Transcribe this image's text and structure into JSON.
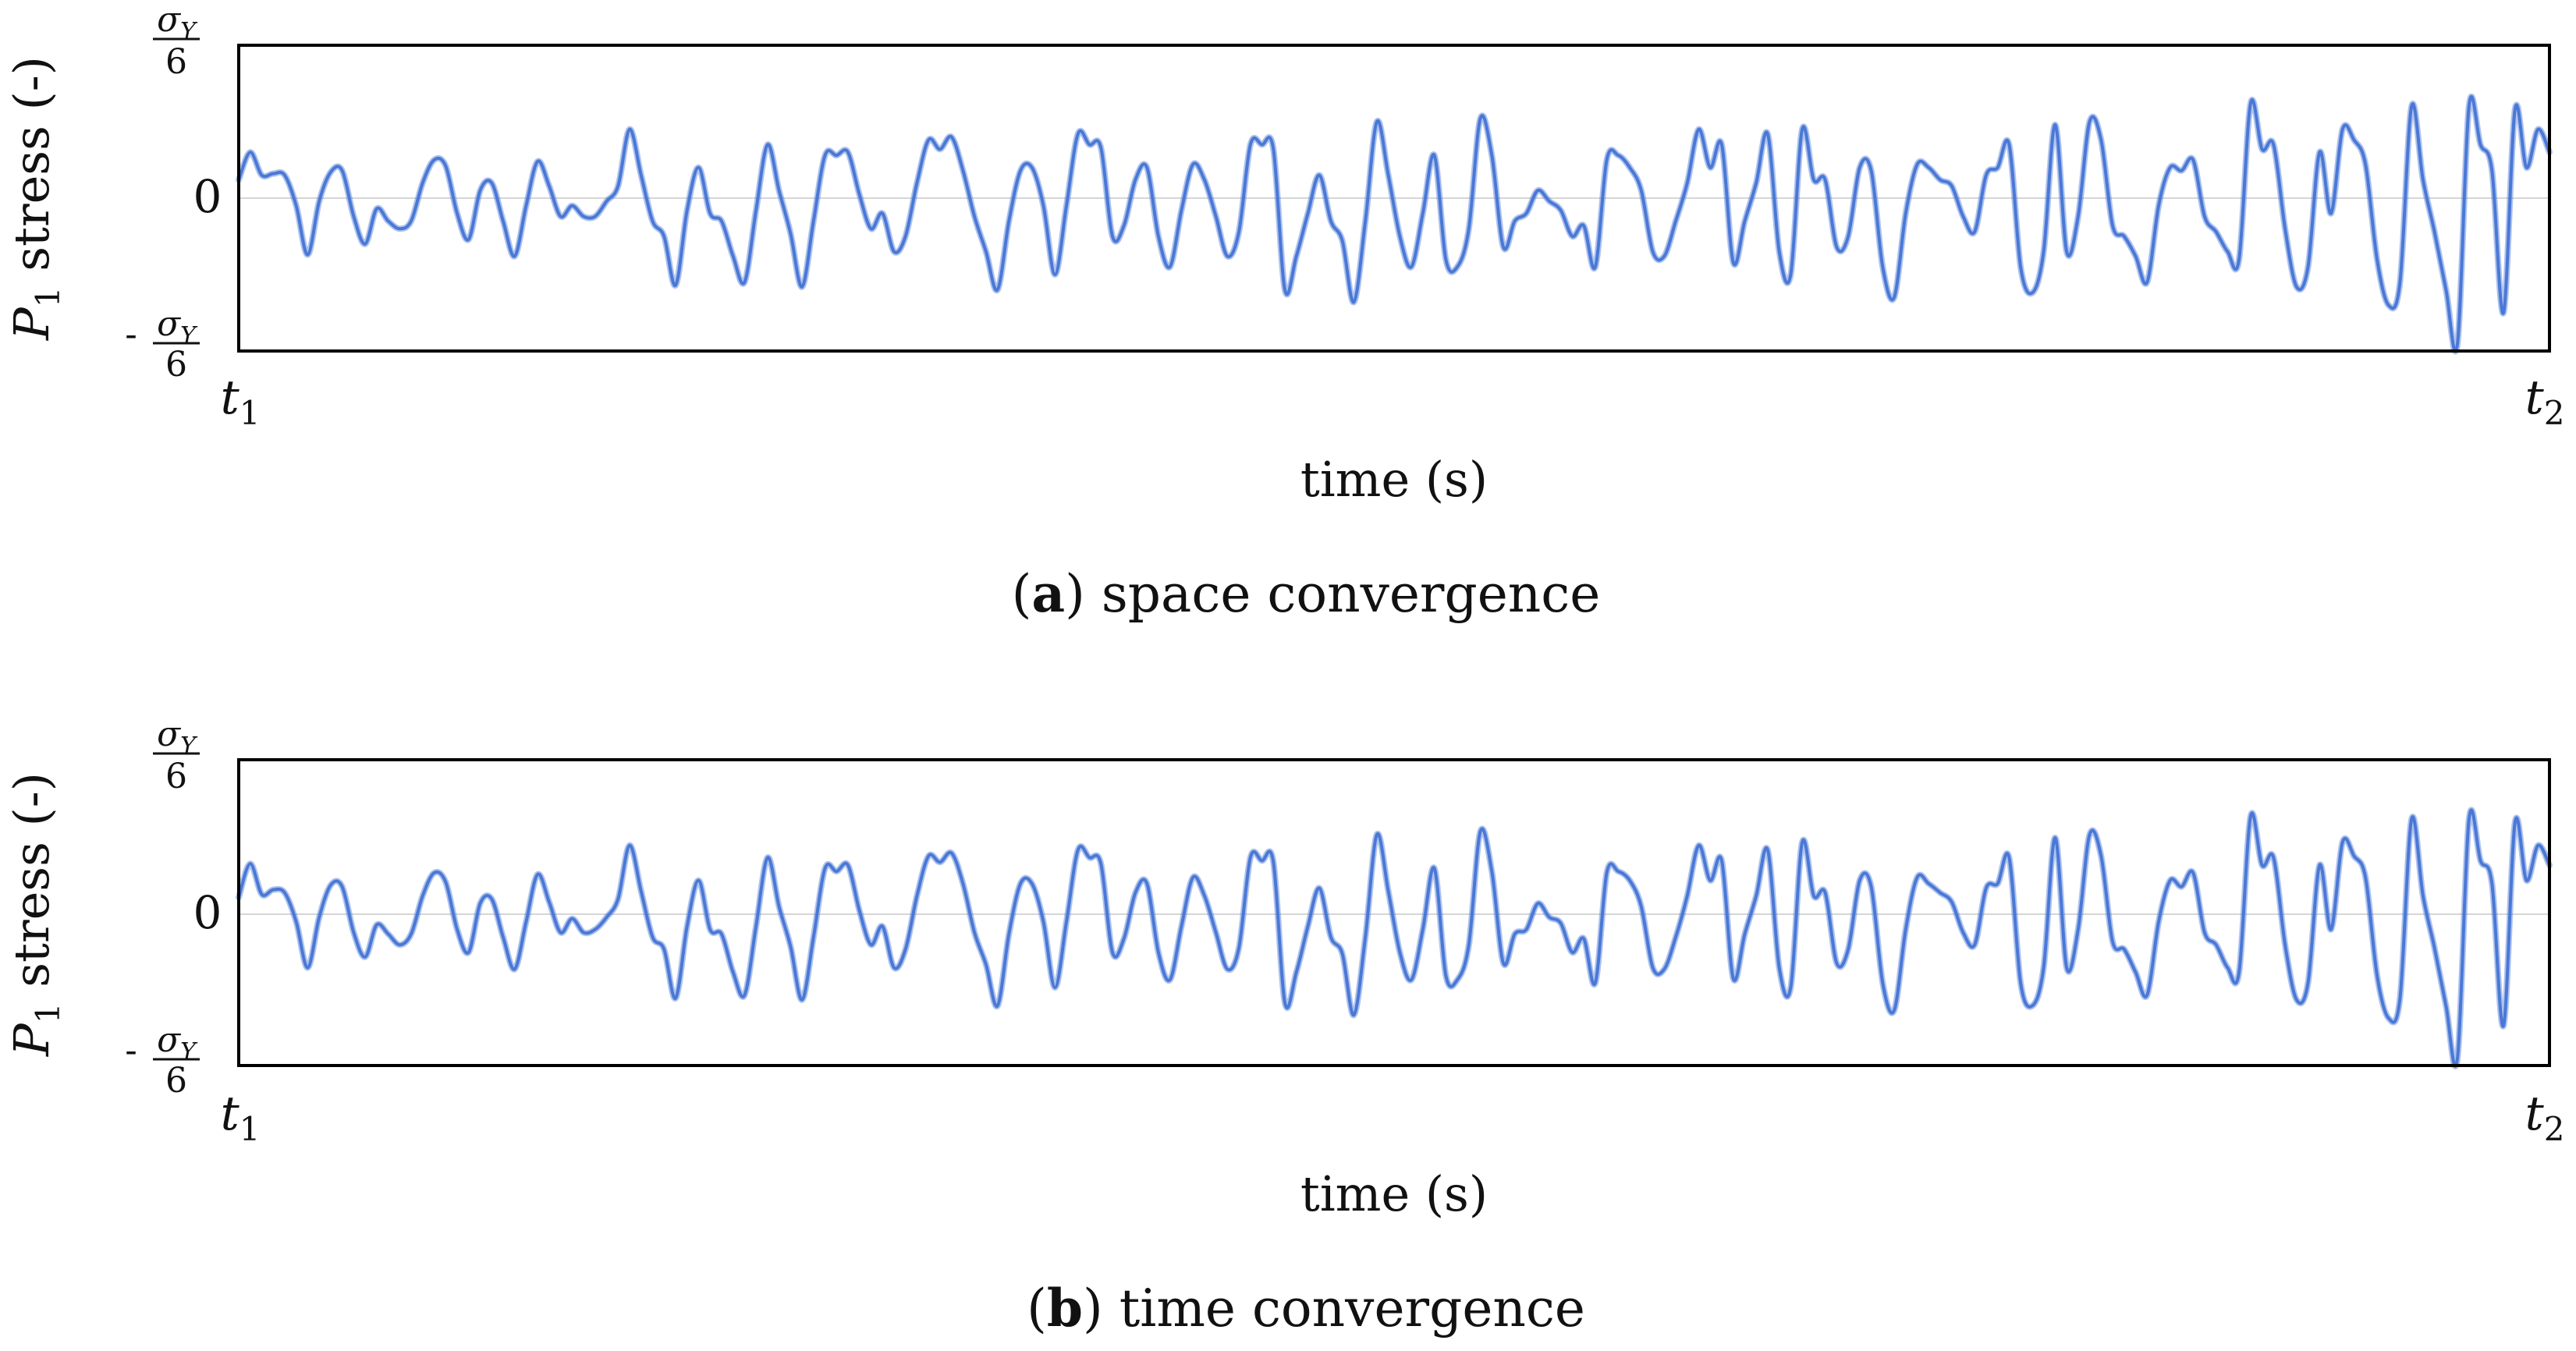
{
  "chart_data": [
    {
      "type": "line",
      "caption_bold": "a",
      "caption_text": "space convergence",
      "xlabel": "time (s)",
      "ylabel_var": "P",
      "ylabel_sub": "1",
      "ylabel_rest": " stress (-)",
      "x_ticks": [
        {
          "base": "t",
          "sub": "1"
        },
        {
          "base": "t",
          "sub": "2"
        }
      ],
      "y_ticks": {
        "top_num": "σ",
        "top_num_sub": "Y",
        "top_den": "6",
        "zero": "0",
        "bottom_sign": "-",
        "bottom_num": "σ",
        "bottom_num_sub": "Y",
        "bottom_den": "6"
      },
      "ylim": [
        -1,
        1
      ],
      "grid": false,
      "series": [
        {
          "color": "#4a78d6",
          "y": [
            0.12,
            0.3,
            0.15,
            0.16,
            0.15,
            -0.05,
            -0.37,
            -0.02,
            0.17,
            0.18,
            -0.12,
            -0.3,
            -0.07,
            -0.15,
            -0.2,
            -0.15,
            0.1,
            0.25,
            0.21,
            -0.1,
            -0.27,
            0.05,
            0.1,
            -0.15,
            -0.38,
            -0.05,
            0.24,
            0.08,
            -0.12,
            -0.05,
            -0.12,
            -0.12,
            -0.02,
            0.08,
            0.45,
            0.15,
            -0.15,
            -0.25,
            -0.57,
            -0.08,
            0.2,
            -0.1,
            -0.15,
            -0.38,
            -0.55,
            -0.08,
            0.35,
            0.05,
            -0.23,
            -0.58,
            -0.15,
            0.28,
            0.28,
            0.3,
            0.02,
            -0.2,
            -0.1,
            -0.35,
            -0.25,
            0.1,
            0.38,
            0.32,
            0.4,
            0.18,
            -0.12,
            -0.35,
            -0.6,
            -0.15,
            0.18,
            0.2,
            -0.05,
            -0.5,
            -0.05,
            0.42,
            0.35,
            0.33,
            -0.25,
            -0.18,
            0.12,
            0.2,
            -0.25,
            -0.45,
            -0.08,
            0.22,
            0.12,
            -0.12,
            -0.38,
            -0.22,
            0.35,
            0.35,
            0.32,
            -0.6,
            -0.38,
            -0.1,
            0.15,
            -0.15,
            -0.28,
            -0.68,
            -0.15,
            0.5,
            0.15,
            -0.25,
            -0.45,
            -0.1,
            0.28,
            -0.4,
            -0.45,
            -0.2,
            0.52,
            0.28,
            -0.32,
            -0.15,
            -0.1,
            0.05,
            -0.02,
            -0.08,
            -0.25,
            -0.18,
            -0.45,
            0.25,
            0.28,
            0.2,
            0.05,
            -0.35,
            -0.38,
            -0.15,
            0.1,
            0.45,
            0.2,
            0.35,
            -0.42,
            -0.15,
            0.1,
            0.42,
            -0.35,
            -0.5,
            0.45,
            0.12,
            0.12,
            -0.32,
            -0.25,
            0.2,
            0.18,
            -0.45,
            -0.65,
            -0.1,
            0.22,
            0.2,
            0.12,
            0.08,
            -0.12,
            -0.22,
            0.15,
            0.2,
            0.35,
            -0.45,
            -0.62,
            -0.35,
            0.48,
            -0.35,
            -0.12,
            0.5,
            0.38,
            -0.18,
            -0.25,
            -0.38,
            -0.55,
            -0.05,
            0.2,
            0.18,
            0.25,
            -0.12,
            -0.22,
            -0.35,
            -0.4,
            0.62,
            0.32,
            0.35,
            -0.2,
            -0.58,
            -0.45,
            0.3,
            -0.1,
            0.45,
            0.38,
            0.22,
            -0.4,
            -0.7,
            -0.55,
            0.6,
            0.12,
            -0.22,
            -0.6,
            -0.95,
            0.6,
            0.35,
            0.18,
            -0.75,
            0.58,
            0.2,
            0.45,
            0.3
          ]
        }
      ]
    },
    {
      "type": "line",
      "caption_bold": "b",
      "caption_text": "time convergence",
      "xlabel": "time (s)",
      "ylabel_var": "P",
      "ylabel_sub": "1",
      "ylabel_rest": " stress (-)",
      "x_ticks": [
        {
          "base": "t",
          "sub": "1"
        },
        {
          "base": "t",
          "sub": "2"
        }
      ],
      "y_ticks": {
        "top_num": "σ",
        "top_num_sub": "Y",
        "top_den": "6",
        "zero": "0",
        "bottom_sign": "-",
        "bottom_num": "σ",
        "bottom_num_sub": "Y",
        "bottom_den": "6"
      },
      "ylim": [
        -1,
        1
      ],
      "grid": false,
      "series": [
        {
          "color": "#4a78d6",
          "y": [
            0.1,
            0.32,
            0.12,
            0.15,
            0.13,
            -0.06,
            -0.36,
            -0.03,
            0.18,
            0.17,
            -0.13,
            -0.29,
            -0.08,
            -0.14,
            -0.21,
            -0.14,
            0.11,
            0.26,
            0.2,
            -0.11,
            -0.26,
            0.06,
            0.09,
            -0.16,
            -0.37,
            -0.06,
            0.25,
            0.07,
            -0.13,
            -0.04,
            -0.13,
            -0.11,
            -0.03,
            0.09,
            0.44,
            0.14,
            -0.16,
            -0.24,
            -0.56,
            -0.09,
            0.21,
            -0.11,
            -0.14,
            -0.39,
            -0.54,
            -0.09,
            0.36,
            0.04,
            -0.22,
            -0.57,
            -0.16,
            0.29,
            0.27,
            0.31,
            0.01,
            -0.21,
            -0.09,
            -0.36,
            -0.24,
            0.11,
            0.37,
            0.33,
            0.39,
            0.19,
            -0.13,
            -0.34,
            -0.61,
            -0.14,
            0.19,
            0.19,
            -0.06,
            -0.49,
            -0.06,
            0.41,
            0.36,
            0.32,
            -0.26,
            -0.17,
            0.13,
            0.19,
            -0.26,
            -0.44,
            -0.09,
            0.23,
            0.11,
            -0.13,
            -0.37,
            -0.23,
            0.36,
            0.34,
            0.33,
            -0.59,
            -0.39,
            -0.09,
            0.16,
            -0.16,
            -0.27,
            -0.67,
            -0.16,
            0.51,
            0.14,
            -0.26,
            -0.44,
            -0.11,
            0.29,
            -0.41,
            -0.44,
            -0.21,
            0.53,
            0.27,
            -0.33,
            -0.14,
            -0.11,
            0.06,
            -0.03,
            -0.07,
            -0.26,
            -0.17,
            -0.46,
            0.26,
            0.27,
            0.21,
            0.04,
            -0.36,
            -0.37,
            -0.16,
            0.11,
            0.44,
            0.21,
            0.34,
            -0.43,
            -0.14,
            0.11,
            0.41,
            -0.36,
            -0.49,
            0.46,
            0.11,
            0.13,
            -0.33,
            -0.24,
            0.21,
            0.17,
            -0.46,
            -0.64,
            -0.11,
            0.23,
            0.19,
            0.13,
            0.07,
            -0.13,
            -0.21,
            0.16,
            0.19,
            0.36,
            -0.46,
            -0.61,
            -0.36,
            0.49,
            -0.36,
            -0.11,
            0.51,
            0.37,
            -0.19,
            -0.24,
            -0.39,
            -0.54,
            -0.06,
            0.21,
            0.17,
            0.26,
            -0.13,
            -0.21,
            -0.36,
            -0.39,
            0.63,
            0.31,
            0.36,
            -0.21,
            -0.57,
            -0.46,
            0.31,
            -0.11,
            0.46,
            0.37,
            0.23,
            -0.41,
            -0.69,
            -0.56,
            0.61,
            0.11,
            -0.23,
            -0.61,
            -0.95,
            0.61,
            0.34,
            0.19,
            -0.74,
            0.59,
            0.21,
            0.44,
            0.31
          ]
        }
      ]
    }
  ]
}
